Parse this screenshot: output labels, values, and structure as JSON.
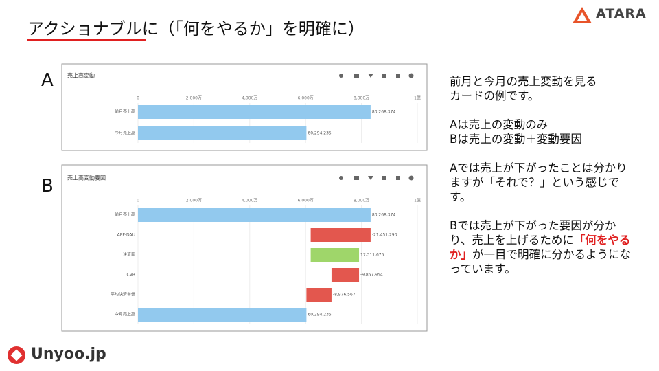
{
  "slide": {
    "title": "アクショナブルに（「何をやるか」を明確に）",
    "logo": "ATARA",
    "footer_logo": "Unyoo.jp",
    "label_a": "A",
    "label_b": "B",
    "notes": [
      [
        "前月と今月の売上変動を見る",
        "カードの例です。"
      ],
      [
        "Aは売上の変動のみ",
        "Bは売上の変動＋変動要因"
      ],
      [
        "Aでは売上が下がったことは分かりますが「それで？」という感じです。"
      ]
    ],
    "note4": {
      "before": "Bでは売上が下がった要因が分かり、売上を上げるために",
      "emphasis": "「何をやるか」",
      "after": "が一目で明確に分かるようになっています。"
    }
  },
  "chart_data": [
    {
      "type": "bar",
      "title": "売上高変動",
      "categories": [
        "前月売上高",
        "今月売上高"
      ],
      "values": [
        83268374,
        60294235
      ],
      "value_labels": [
        "83,268,374",
        "60,294,235"
      ],
      "color": "#92c9ee",
      "xlim": [
        0,
        100000000
      ],
      "xticks": [
        0,
        {
          "value": 20000000,
          "label": "2,000万"
        },
        {
          "value": 40000000,
          "label": "4,000万"
        },
        {
          "value": 60000000,
          "label": "6,000万"
        },
        {
          "value": 80000000,
          "label": "8,000万"
        },
        {
          "value": 100000000,
          "label": "1億"
        }
      ],
      "grid": true
    },
    {
      "type": "waterfall",
      "title": "売上高変動要因",
      "categories": [
        "前月売上高",
        "APP-DAU",
        "決済率",
        "CVR",
        "平均決済単価",
        "今月売上高"
      ],
      "values": [
        83268374,
        -21451293,
        17311675,
        -9857954,
        -8976567,
        60294235
      ],
      "value_labels": [
        "83,268,374",
        "-21,451,293",
        "17,311,675",
        "-9,857,954",
        "-8,976,567",
        "60,294,235"
      ],
      "color": "#92c9ee",
      "increase_color": "#9fd66a",
      "decrease_color": "#e3574e",
      "xlim": [
        0,
        100000000
      ],
      "xticks": [
        0,
        {
          "value": 20000000,
          "label": "2,000万"
        },
        {
          "value": 40000000,
          "label": "4,000万"
        },
        {
          "value": 60000000,
          "label": "6,000万"
        },
        {
          "value": 80000000,
          "label": "8,000万"
        },
        {
          "value": 100000000,
          "label": "1億"
        }
      ],
      "grid": true
    }
  ]
}
